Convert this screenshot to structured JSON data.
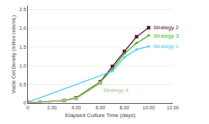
{
  "chart_data": {
    "type": "line",
    "xlabel": "Elapsed Culture Time (days)",
    "ylabel": "Viable Cell Density (million cells/mL)",
    "xlim": [
      0,
      12
    ],
    "ylim": [
      0,
      2.6
    ],
    "xticks": [
      0,
      {
        "value": 2.0,
        "label": "2.00"
      },
      {
        "value": 4.0,
        "label": "4.00"
      },
      {
        "value": 6.0,
        "label": "6.00"
      },
      {
        "value": 8.0,
        "label": "8.00"
      },
      {
        "value": 10.0,
        "label": "10.00"
      },
      {
        "value": 12.0,
        "label": "12.00"
      }
    ],
    "yticks": [
      0,
      0.5,
      {
        "value": 1.0,
        "label": "1.0"
      },
      1.5,
      {
        "value": 2.0,
        "label": "2.0"
      },
      2.5
    ],
    "grid": "y",
    "series": [
      {
        "name": "Strategy 2",
        "color": "#6b1040",
        "marker": "square",
        "x": [
          0,
          1,
          3,
          4,
          6,
          7,
          8,
          9,
          10
        ],
        "values": [
          0.02,
          0.03,
          0.07,
          0.14,
          0.57,
          0.98,
          1.38,
          1.77,
          2.01
        ]
      },
      {
        "name": "Strategy 3",
        "color": "#44bb22",
        "marker": "triangle-up",
        "x": [
          0,
          1,
          3,
          4,
          5,
          6,
          7,
          8,
          9,
          10
        ],
        "values": [
          0.02,
          0.03,
          0.07,
          0.14,
          0.35,
          0.57,
          0.9,
          1.32,
          1.6,
          1.8
        ]
      },
      {
        "name": "Strategy 1",
        "color": "#55ccee",
        "marker": "triangle-up",
        "x": [
          0,
          7,
          8,
          9,
          10
        ],
        "values": [
          0.02,
          0.85,
          1.22,
          1.43,
          1.51
        ]
      },
      {
        "name": "Strategy 4",
        "color": "#aabb88",
        "marker": "square",
        "x": [
          0,
          1,
          3,
          4,
          6
        ],
        "values": [
          0.02,
          0.03,
          0.07,
          0.12,
          0.53
        ]
      }
    ]
  }
}
